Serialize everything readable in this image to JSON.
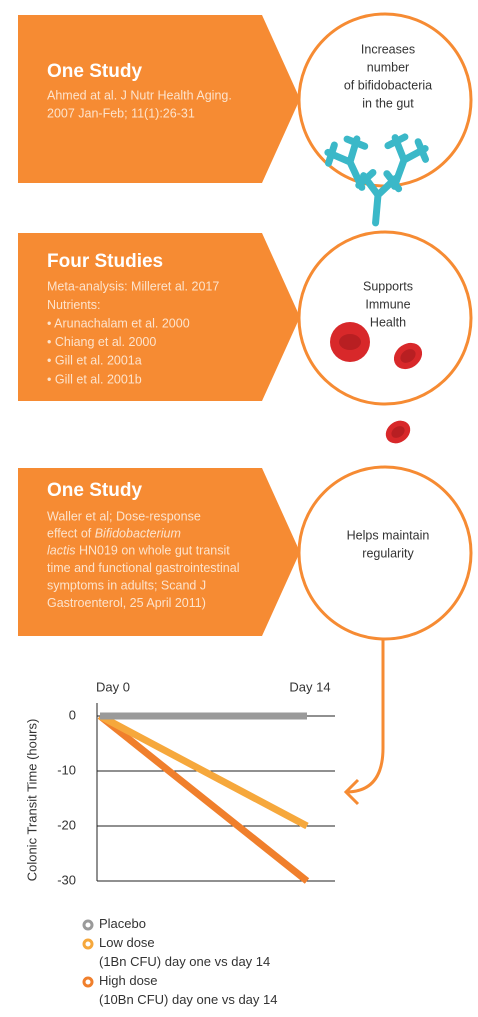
{
  "sections": [
    {
      "title": "One Study",
      "citation": [
        "Ahmed at al. J Nutr Health Aging.",
        "2007 Jan-Feb; 11(1):26-31"
      ],
      "benefit": [
        "Increases",
        "number",
        "of bifidobacteria",
        "in the gut"
      ]
    },
    {
      "title": "Four Studies",
      "citation": [
        "Meta-analysis: Milleret al. 2017",
        "Nutrients:",
        "• Arunachalam et al. 2000",
        "• Chiang et al. 2000",
        "• Gill et al. 2001a",
        "• Gill et al. 2001b"
      ],
      "benefit": [
        "Supports",
        "Immune",
        "Health"
      ]
    },
    {
      "title": "One Study",
      "citation": [
        "Waller et al; Dose-response",
        [
          {
            "text": "effect of "
          },
          {
            "text": "Bifidobacterium",
            "italic": true
          }
        ],
        [
          {
            "text": "lactis",
            "italic": true
          },
          {
            "text": " HN019 on whole gut transit"
          }
        ],
        "time and functional gastrointestinal",
        "symptoms in adults; Scand J",
        "Gastroenterol, 25 April 2011)"
      ],
      "benefit": [
        "Helps maintain",
        "regularity"
      ]
    }
  ],
  "chart_data": {
    "type": "line",
    "y_label": "Colonic Transit Time (hours)",
    "categories": [
      "Day 0",
      "Day 14"
    ],
    "series": [
      {
        "name": "Placebo",
        "color": "#9a9a9a",
        "values": [
          0,
          0
        ]
      },
      {
        "name": "Low dose\n(1Bn CFU) day one vs day 14",
        "color": "#f6a83c",
        "values": [
          0,
          -20
        ]
      },
      {
        "name": "High dose\n(10Bn CFU) day one vs day 14",
        "color": "#f07f2c",
        "values": [
          0,
          -30
        ]
      }
    ],
    "ylim": [
      -30,
      0
    ],
    "yticks": [
      0,
      -10,
      -20,
      -30
    ],
    "grid": true
  }
}
